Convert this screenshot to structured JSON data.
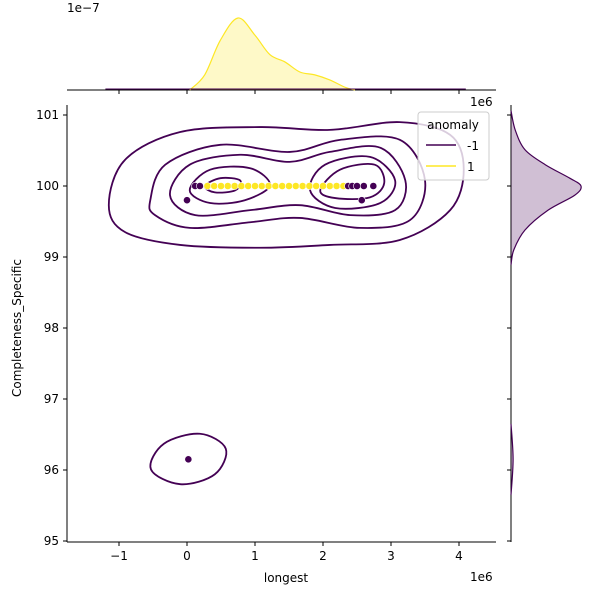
{
  "chart_data": {
    "type": "scatter",
    "subtype": "jointplot with kde contours and marginal kde",
    "xlabel": "longest",
    "ylabel": "Completeness_Specific",
    "x_offset_label": "1e6",
    "y_offset_label": "1e6",
    "top_marginal_offset_label": "1e−7",
    "xlim": [
      -1.8,
      4.55
    ],
    "ylim": [
      94.95,
      101.15
    ],
    "x_ticks": [
      "−1",
      "0",
      "1",
      "2",
      "3",
      "4"
    ],
    "x_tick_values": [
      -1,
      0,
      1,
      2,
      3,
      4
    ],
    "y_ticks": [
      "95",
      "96",
      "97",
      "98",
      "99",
      "100",
      "101"
    ],
    "y_tick_values": [
      95,
      96,
      97,
      98,
      99,
      100,
      101
    ],
    "grid": false,
    "legend": {
      "title": "anomaly",
      "placement": "top-right",
      "entries": [
        {
          "label": "-1",
          "color": "#440154"
        },
        {
          "label": "1",
          "color": "#fde725"
        }
      ]
    },
    "series": [
      {
        "name": "-1",
        "color": "#440154",
        "points": [
          [
            0.12,
            100
          ],
          [
            0.19,
            100
          ],
          [
            0.0,
            99.8
          ],
          [
            2.37,
            100
          ],
          [
            2.43,
            100
          ],
          [
            2.5,
            100
          ],
          [
            2.6,
            100
          ],
          [
            2.74,
            100
          ],
          [
            2.57,
            99.8
          ],
          [
            0.02,
            96.15
          ]
        ]
      },
      {
        "name": "1",
        "color": "#fde725",
        "points": [
          [
            0.3,
            100
          ],
          [
            0.4,
            100
          ],
          [
            0.5,
            100
          ],
          [
            0.6,
            100
          ],
          [
            0.7,
            100
          ],
          [
            0.8,
            100
          ],
          [
            0.9,
            100
          ],
          [
            1.0,
            100
          ],
          [
            1.1,
            100
          ],
          [
            1.2,
            100
          ],
          [
            1.3,
            100
          ],
          [
            1.4,
            100
          ],
          [
            1.5,
            100
          ],
          [
            1.6,
            100
          ],
          [
            1.7,
            100
          ],
          [
            1.8,
            100
          ],
          [
            1.9,
            100
          ],
          [
            2.0,
            100
          ],
          [
            2.1,
            100
          ],
          [
            2.2,
            100
          ],
          [
            2.3,
            100
          ]
        ]
      }
    ],
    "contours_-1": [
      [
        [
          -1.15,
          99.73
        ],
        [
          -0.91,
          100.37
        ],
        [
          -0.1,
          100.76
        ],
        [
          1.07,
          100.83
        ],
        [
          2.1,
          100.79
        ],
        [
          3.13,
          100.9
        ],
        [
          3.87,
          100.72
        ],
        [
          4.07,
          100.23
        ],
        [
          3.87,
          99.66
        ],
        [
          3.13,
          99.24
        ],
        [
          2.1,
          99.17
        ],
        [
          1.07,
          99.13
        ],
        [
          -0.1,
          99.17
        ],
        [
          -0.91,
          99.35
        ]
      ],
      [
        [
          -0.54,
          99.8
        ],
        [
          -0.32,
          100.3
        ],
        [
          0.49,
          100.58
        ],
        [
          1.51,
          100.48
        ],
        [
          2.25,
          100.65
        ],
        [
          3.13,
          100.65
        ],
        [
          3.5,
          100.08
        ],
        [
          3.28,
          99.52
        ],
        [
          2.54,
          99.41
        ],
        [
          1.66,
          99.55
        ],
        [
          0.93,
          99.49
        ],
        [
          0.04,
          99.41
        ],
        [
          -0.47,
          99.59
        ]
      ],
      [
        [
          -0.25,
          99.87
        ],
        [
          0.04,
          100.3
        ],
        [
          0.78,
          100.44
        ],
        [
          1.51,
          100.34
        ],
        [
          2.1,
          100.48
        ],
        [
          2.84,
          100.54
        ],
        [
          3.21,
          100.08
        ],
        [
          3.06,
          99.66
        ],
        [
          2.4,
          99.59
        ],
        [
          1.66,
          99.73
        ],
        [
          0.93,
          99.66
        ],
        [
          0.12,
          99.59
        ]
      ],
      [
        [
          0.04,
          99.94
        ],
        [
          0.34,
          100.23
        ],
        [
          0.93,
          100.25
        ],
        [
          1.22,
          100.01
        ],
        [
          0.85,
          99.8
        ],
        [
          0.34,
          99.76
        ]
      ],
      [
        [
          1.81,
          99.94
        ],
        [
          2.03,
          100.3
        ],
        [
          2.69,
          100.41
        ],
        [
          3.06,
          100.08
        ],
        [
          2.84,
          99.76
        ],
        [
          2.18,
          99.69
        ]
      ],
      [
        [
          0.26,
          100
        ],
        [
          0.49,
          100.11
        ],
        [
          0.78,
          100.08
        ],
        [
          0.71,
          99.94
        ],
        [
          0.41,
          99.91
        ]
      ],
      [
        [
          1.96,
          99.94
        ],
        [
          2.25,
          100.23
        ],
        [
          2.76,
          100.3
        ],
        [
          2.9,
          100.04
        ],
        [
          2.69,
          99.84
        ],
        [
          2.18,
          99.83
        ]
      ],
      [
        [
          -0.53,
          96.01
        ],
        [
          -0.34,
          96.37
        ],
        [
          0.19,
          96.51
        ],
        [
          0.57,
          96.3
        ],
        [
          0.41,
          95.94
        ],
        [
          -0.1,
          95.8
        ]
      ]
    ],
    "top_marginal": {
      "series_1_x": [
        0.04,
        0.26,
        0.49,
        0.75,
        1.0,
        1.22,
        1.44,
        1.66,
        1.88,
        2.1,
        2.32,
        2.47
      ],
      "series_1_density": [
        0,
        0.21,
        0.69,
        1.0,
        0.76,
        0.49,
        0.39,
        0.25,
        0.21,
        0.14,
        0.04,
        0
      ],
      "series_-1_density_level": "near zero"
    },
    "right_marginal": {
      "series_-1_y": [
        101.06,
        100.79,
        100.51,
        100.3,
        100.11,
        100.0,
        99.87,
        99.66,
        99.38,
        99.1,
        98.89,
        96.65,
        96.15,
        95.65
      ],
      "series_-1_density": [
        0,
        0.06,
        0.2,
        0.49,
        0.84,
        1.0,
        0.91,
        0.53,
        0.2,
        0.04,
        0,
        0,
        0.03,
        0
      ]
    }
  }
}
